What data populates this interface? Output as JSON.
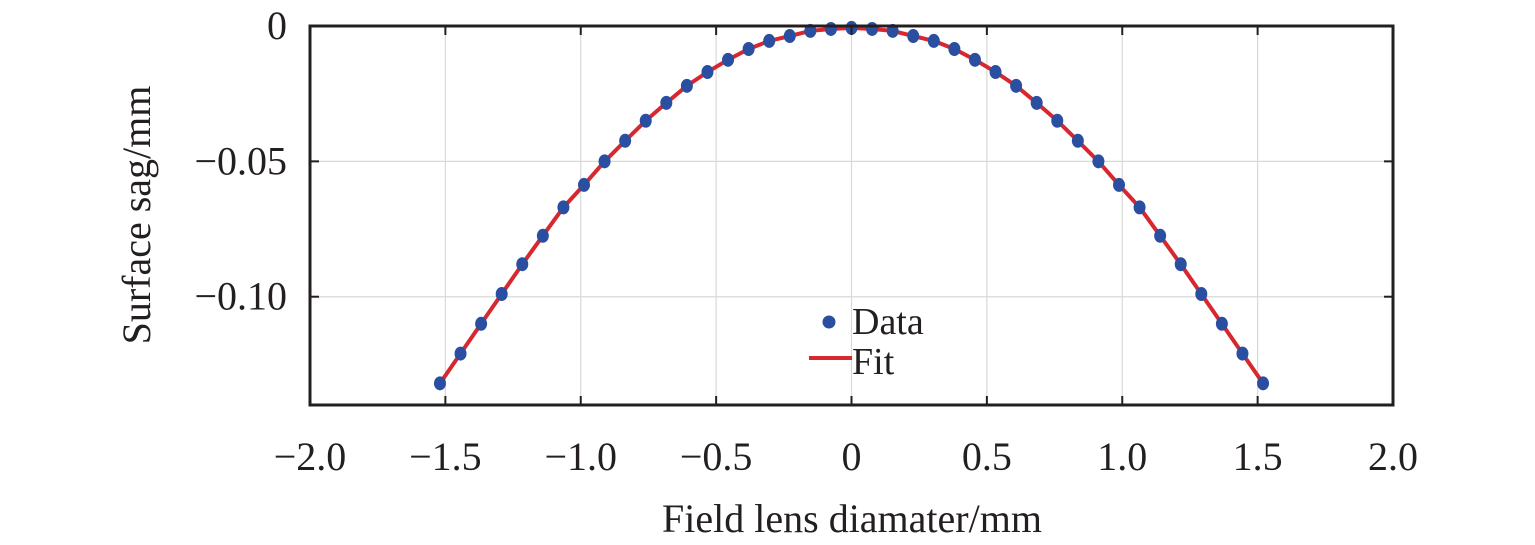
{
  "chart_data": {
    "type": "scatter",
    "title": "",
    "xlabel": "Field lens diamater/mm",
    "ylabel": "Surface sag/mm",
    "xlim": [
      -2.0,
      2.0
    ],
    "ylim": [
      -0.14,
      0
    ],
    "grid": true,
    "legend_position": "bottom-center",
    "x_ticks": [
      -2.0,
      -1.5,
      -1.0,
      -0.5,
      0,
      0.5,
      1.0,
      1.5,
      2.0
    ],
    "x_tick_labels": [
      "−2.0",
      "−1.5",
      "−1.0",
      "−0.5",
      "0",
      "0.5",
      "1.0",
      "1.5",
      "2.0"
    ],
    "y_ticks": [
      0,
      -0.05,
      -0.1
    ],
    "y_tick_labels": [
      "0",
      "−0.05",
      "−0.10"
    ],
    "series": [
      {
        "name": "Data",
        "type": "scatter",
        "color": "#2b4fa0",
        "x": [
          -1.52,
          -1.444,
          -1.368,
          -1.292,
          -1.216,
          -1.14,
          -1.064,
          -0.988,
          -0.912,
          -0.836,
          -0.76,
          -0.684,
          -0.608,
          -0.532,
          -0.456,
          -0.38,
          -0.304,
          -0.228,
          -0.152,
          -0.076,
          0,
          0.076,
          0.152,
          0.228,
          0.304,
          0.38,
          0.456,
          0.532,
          0.608,
          0.684,
          0.76,
          0.836,
          0.912,
          0.988,
          1.064,
          1.14,
          1.216,
          1.292,
          1.368,
          1.444,
          1.52
        ],
        "y": [
          -0.132,
          -0.121,
          -0.11,
          -0.099,
          -0.088,
          -0.0775,
          -0.067,
          -0.0587,
          -0.05,
          -0.0424,
          -0.035,
          -0.0284,
          -0.0221,
          -0.017,
          -0.0125,
          -0.0085,
          -0.0055,
          -0.0037,
          -0.0018,
          -0.0011,
          -0.0007,
          -0.0011,
          -0.0018,
          -0.0037,
          -0.0055,
          -0.0085,
          -0.0125,
          -0.017,
          -0.0221,
          -0.0284,
          -0.035,
          -0.0424,
          -0.05,
          -0.0587,
          -0.067,
          -0.0775,
          -0.088,
          -0.099,
          -0.11,
          -0.121,
          -0.132
        ]
      },
      {
        "name": "Fit",
        "type": "line",
        "color": "#d7282f",
        "x": [
          -1.52,
          -1.444,
          -1.368,
          -1.292,
          -1.216,
          -1.14,
          -1.064,
          -0.988,
          -0.912,
          -0.836,
          -0.76,
          -0.684,
          -0.608,
          -0.532,
          -0.456,
          -0.38,
          -0.304,
          -0.228,
          -0.152,
          -0.076,
          0,
          0.076,
          0.152,
          0.228,
          0.304,
          0.38,
          0.456,
          0.532,
          0.608,
          0.684,
          0.76,
          0.836,
          0.912,
          0.988,
          1.064,
          1.14,
          1.216,
          1.292,
          1.368,
          1.444,
          1.52
        ],
        "y": [
          -0.132,
          -0.121,
          -0.11,
          -0.099,
          -0.088,
          -0.0775,
          -0.067,
          -0.0587,
          -0.05,
          -0.0424,
          -0.035,
          -0.0284,
          -0.0221,
          -0.017,
          -0.0125,
          -0.0085,
          -0.0055,
          -0.0037,
          -0.0018,
          -0.0011,
          -0.0007,
          -0.0011,
          -0.0018,
          -0.0037,
          -0.0055,
          -0.0085,
          -0.0125,
          -0.017,
          -0.0221,
          -0.0284,
          -0.035,
          -0.0424,
          -0.05,
          -0.0587,
          -0.067,
          -0.0775,
          -0.088,
          -0.099,
          -0.11,
          -0.121,
          -0.132
        ]
      }
    ],
    "legend": [
      {
        "label": "Data",
        "marker": "dot",
        "color": "#2b4fa0"
      },
      {
        "label": "Fit",
        "marker": "line",
        "color": "#d7282f"
      }
    ]
  },
  "colors": {
    "axis": "#231f20",
    "grid": "#d9d9d9"
  }
}
